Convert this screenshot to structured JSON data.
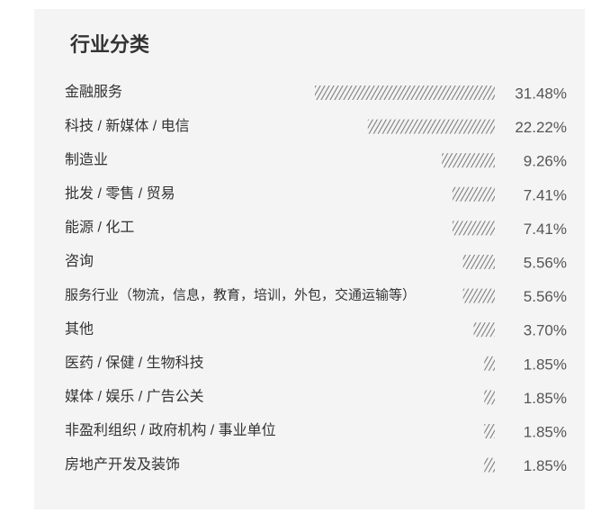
{
  "chart_data": {
    "type": "bar",
    "orientation": "horizontal",
    "title": "行业分类",
    "categories": [
      "金融服务",
      "科技 / 新媒体 / 电信",
      "制造业",
      "批发 / 零售 / 贸易",
      "能源 / 化工",
      "咨询",
      "服务行业（物流，信息，教育，培训，外包，交通运输等）",
      "其他",
      "医药 / 保健 / 生物科技",
      "媒体 / 娱乐 / 广告公关",
      "非盈利组织 / 政府机构 / 事业单位",
      "房地产开发及装饰"
    ],
    "values": [
      31.48,
      22.22,
      9.26,
      7.41,
      7.41,
      5.56,
      5.56,
      3.7,
      1.85,
      1.85,
      1.85,
      1.85
    ],
    "value_labels": [
      "31.48%",
      "22.22%",
      "9.26%",
      "7.41%",
      "7.41%",
      "5.56%",
      "5.56%",
      "3.70%",
      "1.85%",
      "1.85%",
      "1.85%",
      "1.85%"
    ],
    "color": "#777777"
  }
}
